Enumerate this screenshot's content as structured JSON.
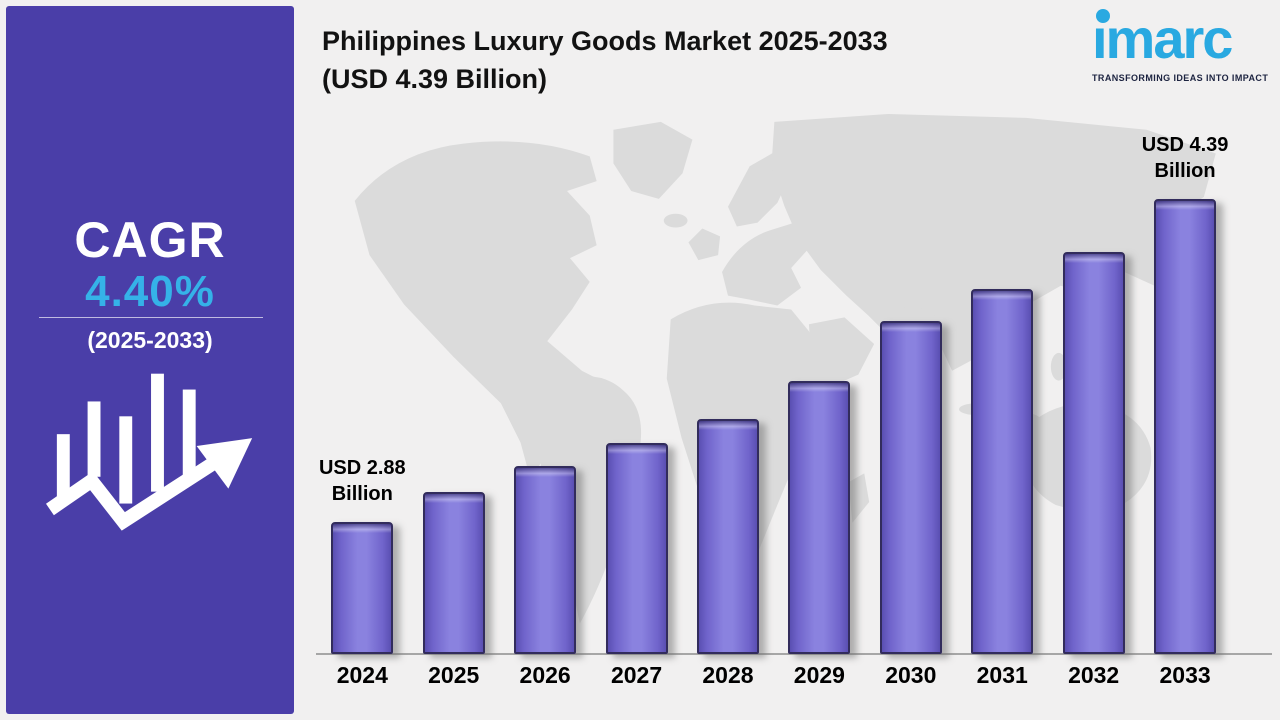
{
  "page": {
    "background": "#F1F0F0"
  },
  "header": {
    "title_line1": "Philippines Luxury Goods Market 2025-2033",
    "title_line2": "(USD 4.39 Billion)"
  },
  "brand": {
    "wordmark": "imarc",
    "tagline": "TRANSFORMING IDEAS INTO IMPACT",
    "logo_color": "#29A9E1",
    "tagline_color": "#1C2340"
  },
  "sidebar": {
    "cagr_label": "CAGR",
    "cagr_value": "4.40%",
    "cagr_period": "(2025-2033)",
    "background": "#4A3EA8",
    "value_color": "#35B2E8",
    "icon": "bar-chart-trend-arrow-icon"
  },
  "chart_data": {
    "type": "bar",
    "title": "Philippines Luxury Goods Market 2025-2033 (USD 4.39 Billion)",
    "unit": "USD Billion",
    "categories": [
      "2024",
      "2025",
      "2026",
      "2027",
      "2028",
      "2029",
      "2030",
      "2031",
      "2032",
      "2033"
    ],
    "values": [
      2.88,
      3.02,
      3.14,
      3.25,
      3.36,
      3.54,
      3.82,
      3.97,
      4.14,
      4.39
    ],
    "labeled_points": [
      {
        "category": "2024",
        "label": "USD 2.88 Billion"
      },
      {
        "category": "2033",
        "label": "USD 4.39 Billion"
      }
    ],
    "annotations": [
      {
        "index": 0,
        "line1": "USD 2.88",
        "line2": "Billion"
      },
      {
        "index": 9,
        "line1": "USD 4.39",
        "line2": "Billion"
      }
    ],
    "bar_fill": "#7E75D6",
    "bar_edge": "#322C5C",
    "axis_color": "#A6A6A6",
    "background_map_color": "#DBDBDB",
    "grid": false,
    "legend": "none",
    "y_axis_shown": false,
    "y_baseline_nonzero": true
  }
}
